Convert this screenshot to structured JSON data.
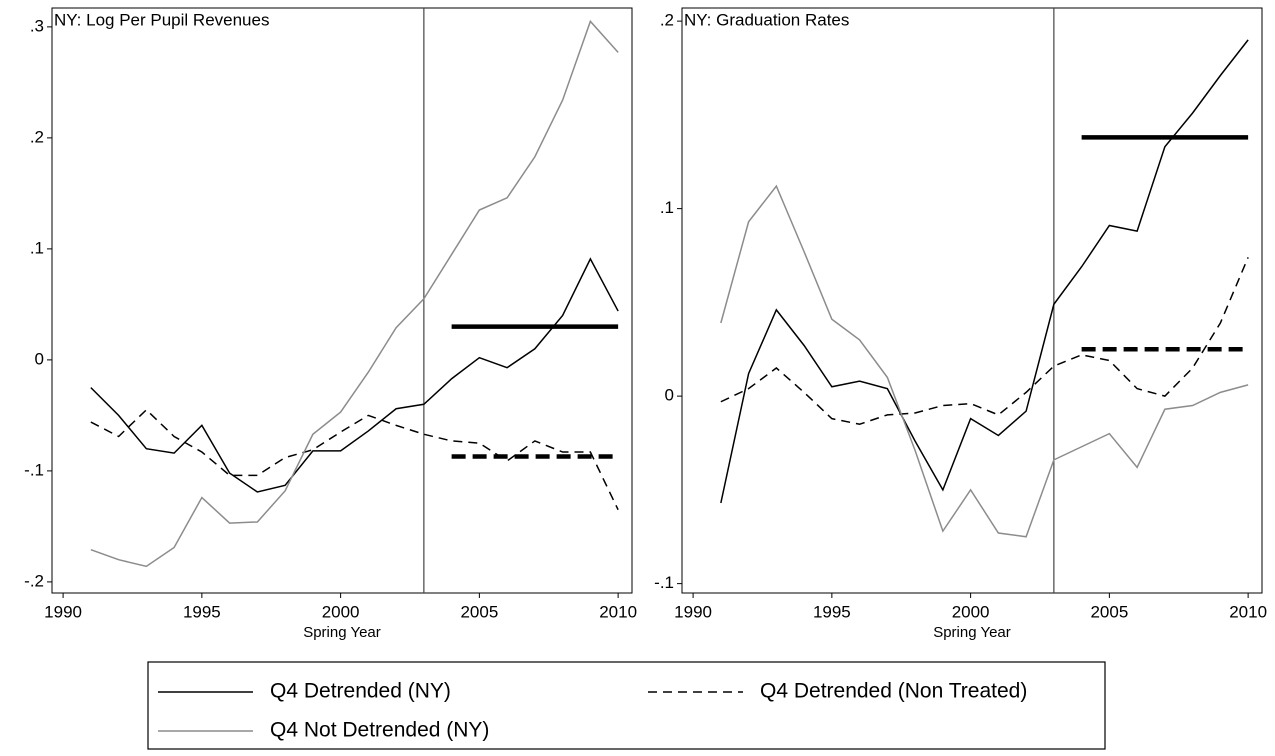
{
  "chart_data": [
    {
      "type": "line",
      "title": "NY: Log Per Pupil Revenues",
      "xlabel": "Spring Year",
      "x": [
        1991,
        1992,
        1993,
        1994,
        1995,
        1996,
        1997,
        1998,
        1999,
        2000,
        2001,
        2002,
        2003,
        2004,
        2005,
        2006,
        2007,
        2008,
        2009,
        2010
      ],
      "xlim": [
        1989.6,
        2010.5
      ],
      "ylim": [
        -0.21,
        0.317
      ],
      "xticks": [
        1990,
        1995,
        2000,
        2005,
        2010
      ],
      "yticks": [
        {
          "value": -0.2,
          "label": "-.2"
        },
        {
          "value": -0.1,
          "label": "-.1"
        },
        0,
        {
          "value": 0.1,
          "label": ".1"
        },
        {
          "value": 0.2,
          "label": ".2"
        },
        {
          "value": 0.3,
          "label": ".3"
        }
      ],
      "vline": 2003,
      "series": [
        {
          "name": "Q4 Detrended (NY)",
          "color": "#000000",
          "dash": "solid",
          "values": [
            -0.025,
            -0.05,
            -0.08,
            -0.084,
            -0.059,
            -0.102,
            -0.119,
            -0.113,
            -0.082,
            -0.082,
            -0.064,
            -0.044,
            -0.04,
            -0.017,
            0.002,
            -0.007,
            0.01,
            0.04,
            0.091,
            0.044
          ]
        },
        {
          "name": "Q4 Detrended (Non Treated)",
          "color": "#000000",
          "dash": "dashed",
          "values": [
            -0.056,
            -0.069,
            -0.045,
            -0.069,
            -0.083,
            -0.104,
            -0.104,
            -0.088,
            -0.081,
            -0.065,
            -0.05,
            -0.059,
            -0.067,
            -0.073,
            -0.075,
            -0.091,
            -0.073,
            -0.083,
            -0.083,
            -0.135
          ]
        },
        {
          "name": "Q4 Not Detrended (NY)",
          "color": "#8c8c8c",
          "dash": "solid",
          "values": [
            -0.171,
            -0.18,
            -0.186,
            -0.169,
            -0.124,
            -0.147,
            -0.146,
            -0.118,
            -0.067,
            -0.047,
            -0.011,
            0.029,
            0.055,
            0.095,
            0.135,
            0.146,
            0.183,
            0.234,
            0.305,
            0.277
          ]
        }
      ],
      "mean_lines": [
        {
          "x": [
            2004,
            2010
          ],
          "value": 0.03,
          "dash": "solid",
          "color": "#000000"
        },
        {
          "x": [
            2004,
            2010
          ],
          "value": -0.087,
          "dash": "dashed",
          "color": "#000000"
        }
      ]
    },
    {
      "type": "line",
      "title": "NY: Graduation Rates",
      "xlabel": "Spring Year",
      "x": [
        1991,
        1992,
        1993,
        1994,
        1995,
        1996,
        1997,
        1998,
        1999,
        2000,
        2001,
        2002,
        2003,
        2004,
        2005,
        2006,
        2007,
        2008,
        2009,
        2010
      ],
      "xlim": [
        1989.6,
        2010.5
      ],
      "ylim": [
        -0.105,
        0.207
      ],
      "xticks": [
        1990,
        1995,
        2000,
        2005,
        2010
      ],
      "yticks": [
        {
          "value": -0.1,
          "label": "-.1"
        },
        0,
        {
          "value": 0.1,
          "label": ".1"
        },
        {
          "value": 0.2,
          "label": ".2"
        }
      ],
      "vline": 2003,
      "series": [
        {
          "color": "#000000",
          "dash": "solid",
          "values": [
            -0.057,
            0.012,
            0.046,
            0.027,
            0.005,
            0.008,
            0.004,
            -0.024,
            -0.05,
            -0.012,
            -0.021,
            -0.008,
            0.049,
            0.069,
            0.091,
            0.088,
            0.133,
            0.151,
            0.171,
            0.19
          ]
        },
        {
          "color": "#000000",
          "dash": "dashed",
          "values": [
            -0.003,
            0.004,
            0.015,
            0.002,
            -0.012,
            -0.015,
            -0.01,
            -0.009,
            -0.005,
            -0.004,
            -0.01,
            0.002,
            0.016,
            0.022,
            0.019,
            0.004,
            0,
            0.015,
            0.039,
            0.074
          ]
        },
        {
          "color": "#8c8c8c",
          "dash": "solid",
          "values": [
            0.039,
            0.093,
            0.112,
            0.077,
            0.041,
            0.03,
            0.01,
            -0.029,
            -0.072,
            -0.05,
            -0.073,
            -0.075,
            -0.034,
            -0.027,
            -0.02,
            -0.038,
            -0.007,
            -0.005,
            0.002,
            0.006
          ]
        }
      ],
      "mean_lines": [
        {
          "x": [
            2004,
            2010
          ],
          "value": 0.138,
          "dash": "solid",
          "color": "#000000"
        },
        {
          "x": [
            2004,
            2010
          ],
          "value": 0.025,
          "dash": "dashed",
          "color": "#000000"
        }
      ]
    }
  ]
}
